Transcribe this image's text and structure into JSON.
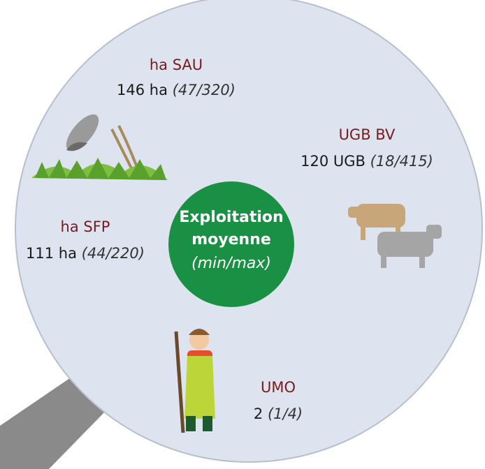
{
  "center": {
    "lines": [
      "Exploitation",
      "moyenne",
      "(min/max)"
    ]
  },
  "items": [
    {
      "label": "ha SAU",
      "value": "146 ha",
      "range": "(47/320)"
    },
    {
      "label": "UGB BV",
      "value": "120 UGB",
      "range": "(18/415)"
    },
    {
      "label": "ha SFP",
      "value": "111 ha",
      "range": "(44/220)"
    },
    {
      "label": "UMO",
      "value": "2",
      "range": "(1/4)"
    }
  ]
}
